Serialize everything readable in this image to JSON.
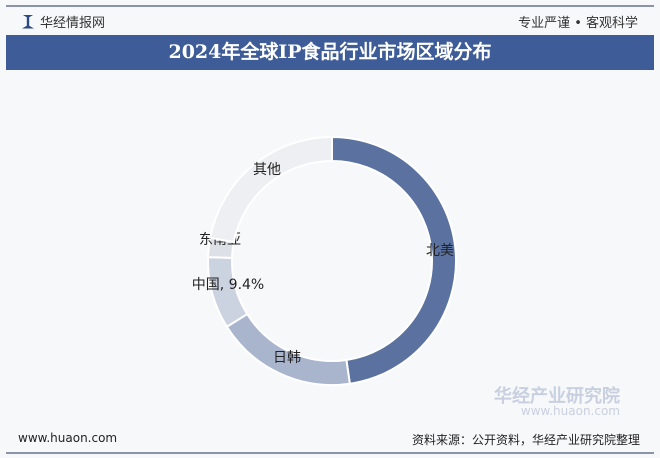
{
  "header": {
    "brand": "华经情报网",
    "slogan": "专业严谨 • 客观科学",
    "title": "2024年全球IP食品行业市场区域分布"
  },
  "footer": {
    "url": "www.huaon.com",
    "source": "资料来源：公开资料，华经产业研究院整理"
  },
  "watermark": {
    "name": "华经产业研究院",
    "url": "www.huaon.com"
  },
  "chart_data": {
    "type": "pie",
    "donut": true,
    "title": "2024年全球IP食品行业市场区域分布",
    "unit": "%",
    "slices": [
      {
        "label": "北美",
        "value": 47.7,
        "color": "#5b72a1",
        "display": "北美"
      },
      {
        "label": "日韩",
        "value": 18.4,
        "color": "#a9b5cd",
        "display": "日韩"
      },
      {
        "label": "中国",
        "value": 9.4,
        "color": "#cbd2e0",
        "display": "中国, 9.4%"
      },
      {
        "label": "东南亚",
        "value": 2.5,
        "color": "#dde0e6",
        "display": "东南亚"
      },
      {
        "label": "其他",
        "value": 22.0,
        "color": "#eeeff2",
        "display": "其他"
      }
    ]
  }
}
